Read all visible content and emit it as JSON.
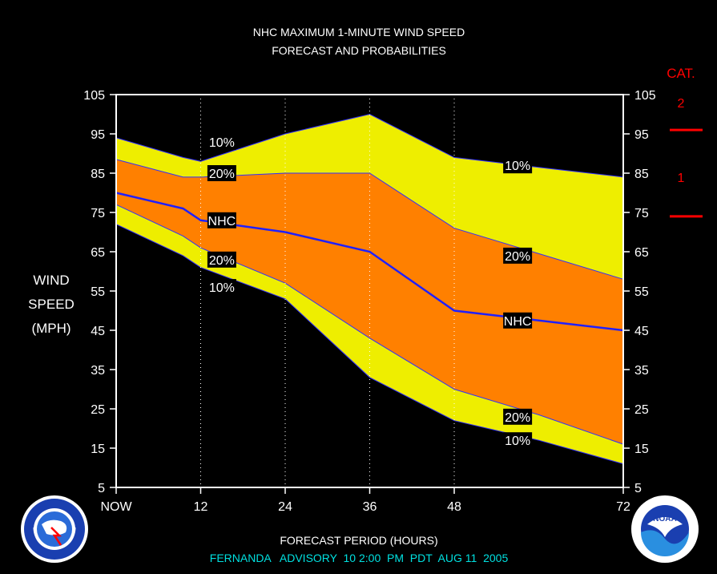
{
  "chart_data": {
    "type": "area",
    "title": "NHC MAXIMUM 1-MINUTE WIND SPEED",
    "subtitle": "FORECAST AND PROBABILITIES",
    "xlabel": "FORECAST PERIOD (HOURS)",
    "ylabel": [
      "WIND",
      "SPEED",
      "(MPH)"
    ],
    "xlim": [
      0,
      72
    ],
    "ylim": [
      5,
      105
    ],
    "x_ticks": [
      {
        "x": 0,
        "label": "NOW"
      },
      {
        "x": 12,
        "label": "12"
      },
      {
        "x": 24,
        "label": "24"
      },
      {
        "x": 36,
        "label": "36"
      },
      {
        "x": 48,
        "label": "48"
      },
      {
        "x": 72,
        "label": "72"
      }
    ],
    "y_ticks": [
      5,
      15,
      25,
      35,
      45,
      55,
      65,
      75,
      85,
      95,
      105
    ],
    "x": [
      0,
      9.5,
      12,
      24,
      36,
      48,
      60,
      72
    ],
    "bands": [
      {
        "name": "10%",
        "color": "#eeee00",
        "upper": [
          94,
          89,
          88,
          95,
          100,
          89,
          86.5,
          84
        ],
        "lower": [
          72,
          64,
          61,
          53,
          33,
          22,
          17,
          11
        ]
      },
      {
        "name": "20%",
        "color": "#ff8000",
        "upper": [
          88.5,
          84,
          84,
          85,
          85,
          71,
          64.5,
          58
        ],
        "lower": [
          77,
          69,
          66,
          57,
          43,
          30,
          23.5,
          16
        ]
      }
    ],
    "series": [
      {
        "name": "NHC",
        "color": "#2020ff",
        "values": [
          80,
          76,
          73,
          70,
          65,
          50,
          47.5,
          45
        ]
      }
    ],
    "band_labels": [
      {
        "text": "10%",
        "x": 15,
        "y": 93
      },
      {
        "text": "20%",
        "x": 15,
        "y": 85
      },
      {
        "text": "NHC",
        "x": 15,
        "y": 73
      },
      {
        "text": "20%",
        "x": 15,
        "y": 63
      },
      {
        "text": "10%",
        "x": 15,
        "y": 56
      },
      {
        "text": "10%",
        "x": 57,
        "y": 87
      },
      {
        "text": "20%",
        "x": 57,
        "y": 64
      },
      {
        "text": "NHC",
        "x": 57,
        "y": 47.5
      },
      {
        "text": "20%",
        "x": 57,
        "y": 23
      },
      {
        "text": "10%",
        "x": 57,
        "y": 17
      }
    ],
    "category_scale": {
      "title": "CAT.",
      "color": "#ff0000",
      "labels": [
        {
          "text": "2",
          "y": 103
        },
        {
          "text": "1",
          "y": 84
        }
      ],
      "thresholds": [
        96,
        74
      ]
    },
    "grid": "dotted vertical lines at 12, 24, 36, 48"
  },
  "footer": {
    "advisory": "FERNANDA   ADVISORY  10 2:00  PM  PDT  AUG 11  2005",
    "advisory_color": "#00e0e0"
  },
  "logos": {
    "left": "national-weather-service-logo",
    "right": "noaa-logo"
  }
}
